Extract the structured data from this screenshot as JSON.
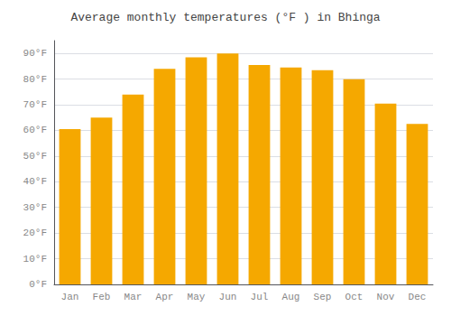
{
  "chart_data": {
    "type": "bar",
    "title": "Average monthly temperatures (°F ) in Bhinga",
    "categories": [
      "Jan",
      "Feb",
      "Mar",
      "Apr",
      "May",
      "Jun",
      "Jul",
      "Aug",
      "Sep",
      "Oct",
      "Nov",
      "Dec"
    ],
    "values": [
      60.5,
      65.0,
      74.0,
      84.0,
      88.5,
      90.0,
      85.5,
      84.5,
      83.5,
      80.0,
      70.5,
      62.5
    ],
    "color": "#F5A800",
    "ylim": [
      0,
      95
    ],
    "yticks": [
      {
        "value": 0,
        "label": "0°F"
      },
      {
        "value": 10,
        "label": "10°F"
      },
      {
        "value": 20,
        "label": "20°F"
      },
      {
        "value": 30,
        "label": "30°F"
      },
      {
        "value": 40,
        "label": "40°F"
      },
      {
        "value": 50,
        "label": "50°F"
      },
      {
        "value": 60,
        "label": "60°F"
      },
      {
        "value": 70,
        "label": "70°F"
      },
      {
        "value": 80,
        "label": "80°F"
      },
      {
        "value": 90,
        "label": "90°F"
      }
    ],
    "grid": true
  }
}
